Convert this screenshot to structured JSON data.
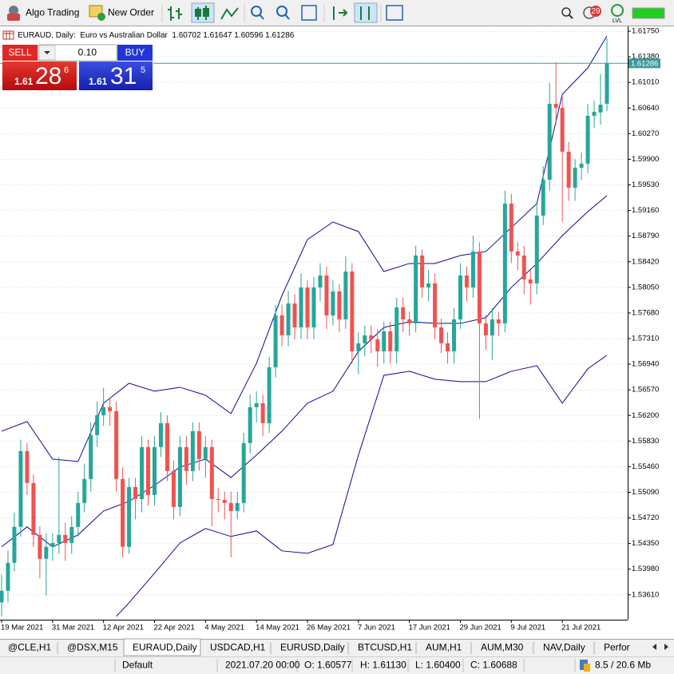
{
  "toolbar": {
    "algo_trading": "Algo Trading",
    "new_order": "New Order",
    "alerts": "29",
    "level": "LVL"
  },
  "trade_panel": {
    "sell": "SELL",
    "volume": "0.10",
    "buy": "BUY",
    "bid": {
      "big_figure": "1.61",
      "pips": "28",
      "point": "6"
    },
    "ask": {
      "big_figure": "1.61",
      "pips": "31",
      "point": "5"
    }
  },
  "tabs": [
    "@CLE,H1",
    "@DSX,M15",
    "EURAUD,Daily",
    "USDCAD,H1",
    "EURUSD,Daily",
    "BTCUSD,H1",
    "AUM,H1",
    "AUM,M30",
    "NAV,Daily",
    "Perfor"
  ],
  "active_tab": 2,
  "status": {
    "profile": "Default",
    "time": "2021.07.20 00:00",
    "open": "O: 1.60577",
    "high": "H: 1.61130",
    "low": "L: 1.60400",
    "close": "C: 1.60688",
    "memory": "8.5 / 20.6 Mb"
  },
  "chart_data": {
    "type": "candlestick",
    "title": "EURAUD, Daily:  Euro vs Australian Dollar  1.60702 1.61647 1.60596 1.61286",
    "up_color": "#26a69a",
    "down_color": "#ef5350",
    "categories": [
      "19 Mar 2021",
      null,
      null,
      null,
      null,
      null,
      null,
      null,
      "31 Mar 2021",
      null,
      null,
      null,
      null,
      null,
      null,
      null,
      "12 Apr 2021",
      null,
      null,
      null,
      null,
      null,
      null,
      null,
      "22 Apr 2021",
      null,
      null,
      null,
      null,
      null,
      null,
      null,
      "4 May 2021",
      null,
      null,
      null,
      null,
      null,
      null,
      null,
      "14 May 2021",
      null,
      null,
      null,
      null,
      null,
      null,
      null,
      "26 May 2021",
      null,
      null,
      null,
      null,
      null,
      null,
      null,
      "7 Jun 2021",
      null,
      null,
      null,
      null,
      null,
      null,
      null,
      "17 Jun 2021",
      null,
      null,
      null,
      null,
      null,
      null,
      null,
      "29 Jun 2021",
      null,
      null,
      null,
      null,
      null,
      null,
      null,
      "9 Jul 2021",
      null,
      null,
      null,
      null,
      null,
      null,
      null,
      "21 Jul 2021",
      null,
      null,
      null,
      null,
      null,
      null,
      null
    ],
    "open": [
      1.535,
      1.53667,
      1.54071,
      1.5459,
      1.55685,
      1.55224,
      1.54475,
      1.54129,
      1.54302,
      1.54359,
      1.54475,
      1.54359,
      1.5459,
      1.54936,
      1.55282,
      1.55916,
      1.56204,
      1.56319,
      1.56262,
      1.55282,
      1.54302,
      1.55166,
      1.54993,
      1.55743,
      1.55051,
      1.55743,
      1.56089,
      1.55397,
      1.54878,
      1.55743,
      1.55397,
      1.55973,
      1.5557,
      1.55743,
      1.54993,
      1.5498,
      1.54936,
      1.5482,
      1.54936,
      1.55801,
      1.56319,
      1.56377,
      1.56089,
      1.56896,
      1.57645,
      1.57357,
      1.57818,
      1.57472,
      1.58049,
      1.57472,
      1.58049,
      1.58222,
      1.57645,
      1.57991,
      1.57588,
      1.58279,
      1.57126,
      1.57242,
      1.57357,
      1.57299,
      1.57126,
      1.57415,
      1.57126,
      1.57761,
      1.57588,
      1.5753,
      1.5851,
      1.58049,
      1.58107,
      1.57472,
      1.57242,
      1.57126,
      1.57588,
      1.58222,
      1.58049,
      1.58568,
      1.5753,
      1.57357,
      1.57588,
      1.5753,
      1.5926,
      1.58568,
      1.5851,
      1.58164,
      1.58107,
      1.59087,
      1.59605,
      1.60701,
      1.60643,
      1.60009,
      1.5949,
      1.59778,
      1.59836,
      1.60528,
      1.60577,
      1.60702
    ],
    "high": [
      1.539,
      1.5425,
      1.548,
      1.5585,
      1.558,
      1.5535,
      1.546,
      1.545,
      1.545,
      1.556,
      1.5465,
      1.5475,
      1.551,
      1.555,
      1.561,
      1.564,
      1.566,
      1.5645,
      1.564,
      1.5545,
      1.553,
      1.553,
      1.559,
      1.5585,
      1.559,
      1.5625,
      1.562,
      1.5555,
      1.559,
      1.559,
      1.561,
      1.561,
      1.559,
      1.5585,
      1.5515,
      1.551,
      1.551,
      1.551,
      1.5595,
      1.565,
      1.5655,
      1.565,
      1.5705,
      1.578,
      1.578,
      1.58,
      1.5795,
      1.5825,
      1.5815,
      1.582,
      1.584,
      1.5835,
      1.5815,
      1.581,
      1.585,
      1.584,
      1.574,
      1.575,
      1.575,
      1.5745,
      1.5755,
      1.5755,
      1.579,
      1.579,
      1.577,
      1.5865,
      1.586,
      1.583,
      1.5825,
      1.576,
      1.574,
      1.5775,
      1.584,
      1.5835,
      1.588,
      1.587,
      1.5765,
      1.5775,
      1.577,
      1.5945,
      1.594,
      1.587,
      1.5865,
      1.583,
      1.5925,
      1.598,
      1.61,
      1.613,
      1.608,
      1.6015,
      1.599,
      1.6,
      1.607,
      1.6075,
      1.6113,
      1.61647
    ],
    "low": [
      1.533,
      1.535,
      1.5395,
      1.5445,
      1.5505,
      1.543,
      1.5385,
      1.536,
      1.541,
      1.542,
      1.541,
      1.542,
      1.5445,
      1.548,
      1.551,
      1.5575,
      1.5605,
      1.5605,
      1.551,
      1.5415,
      1.542,
      1.547,
      1.548,
      1.549,
      1.549,
      1.556,
      1.5525,
      1.547,
      1.5475,
      1.552,
      1.5525,
      1.554,
      1.553,
      1.546,
      1.548,
      1.547,
      1.5415,
      1.547,
      1.548,
      1.5565,
      1.561,
      1.559,
      1.5595,
      1.5675,
      1.572,
      1.572,
      1.573,
      1.573,
      1.573,
      1.573,
      1.5785,
      1.5745,
      1.575,
      1.574,
      1.5745,
      1.5695,
      1.568,
      1.5705,
      1.571,
      1.569,
      1.5695,
      1.5695,
      1.5695,
      1.574,
      1.5735,
      1.574,
      1.579,
      1.5785,
      1.573,
      1.571,
      1.5695,
      1.5695,
      1.5745,
      1.5785,
      1.579,
      1.5615,
      1.5715,
      1.57,
      1.5735,
      1.574,
      1.584,
      1.583,
      1.5795,
      1.578,
      1.5795,
      1.5895,
      1.5945,
      1.604,
      1.59,
      1.593,
      1.593,
      1.596,
      1.597,
      1.6035,
      1.604,
      1.60596
    ],
    "close": [
      1.53667,
      1.54071,
      1.5459,
      1.55685,
      1.55224,
      1.54475,
      1.54129,
      1.54302,
      1.54359,
      1.54475,
      1.54359,
      1.5459,
      1.54936,
      1.55282,
      1.55916,
      1.56204,
      1.56319,
      1.56262,
      1.55282,
      1.54302,
      1.55166,
      1.54993,
      1.55743,
      1.55051,
      1.55743,
      1.56089,
      1.55397,
      1.54878,
      1.55743,
      1.55397,
      1.55973,
      1.5557,
      1.55743,
      1.54993,
      1.5498,
      1.54936,
      1.5482,
      1.54936,
      1.55801,
      1.56319,
      1.56377,
      1.56089,
      1.56896,
      1.57645,
      1.57357,
      1.57818,
      1.57472,
      1.58049,
      1.57472,
      1.58049,
      1.58222,
      1.57645,
      1.57991,
      1.57588,
      1.58279,
      1.57126,
      1.57242,
      1.57357,
      1.57299,
      1.57126,
      1.57415,
      1.57126,
      1.57761,
      1.57588,
      1.5753,
      1.5851,
      1.58049,
      1.58107,
      1.57472,
      1.57242,
      1.57126,
      1.57588,
      1.58222,
      1.58049,
      1.58568,
      1.5753,
      1.57357,
      1.57588,
      1.5753,
      1.5926,
      1.58568,
      1.5851,
      1.58164,
      1.58107,
      1.59087,
      1.59605,
      1.60701,
      1.60643,
      1.60009,
      1.5949,
      1.59778,
      1.59836,
      1.60528,
      1.60585,
      1.60688,
      1.61286
    ],
    "bands": {
      "color": "#0a0a96",
      "lines": [
        {
          "x": [
            0,
            4,
            8,
            12,
            16,
            20,
            24,
            28,
            32,
            36,
            40,
            44,
            48,
            52,
            56,
            60,
            64,
            68,
            72,
            76,
            80,
            84,
            88,
            92,
            95
          ],
          "values": [
            1.55973,
            1.56112,
            1.5557,
            1.55535,
            1.56377,
            1.56665,
            1.5655,
            1.56607,
            1.56492,
            1.56227,
            1.56953,
            1.57933,
            1.58741,
            1.58994,
            1.58856,
            1.58279,
            1.58395,
            1.58395,
            1.5851,
            1.58568,
            1.58914,
            1.5926,
            1.60839,
            1.6122,
            1.61681
          ]
        },
        {
          "x": [
            0,
            4,
            8,
            12,
            16,
            20,
            24,
            28,
            32,
            36,
            40,
            44,
            48,
            52,
            56,
            60,
            64,
            68,
            72,
            76,
            80,
            84,
            88,
            92,
            95
          ],
          "values": [
            1.54302,
            1.5459,
            1.54302,
            1.54475,
            1.5482,
            1.54959,
            1.55189,
            1.55455,
            1.5557,
            1.55305,
            1.55627,
            1.55973,
            1.56377,
            1.5655,
            1.57126,
            1.57472,
            1.57553,
            1.5753,
            1.5753,
            1.57611,
            1.58049,
            1.58395,
            1.58798,
            1.59144,
            1.59375
          ]
        },
        {
          "x": [
            18,
            20,
            24,
            28,
            32,
            36,
            40,
            44,
            48,
            52,
            56,
            60,
            64,
            68,
            72,
            76,
            80,
            84,
            88,
            92,
            95
          ],
          "values": [
            1.53298,
            1.53494,
            1.53921,
            1.54359,
            1.54567,
            1.54452,
            1.54532,
            1.54244,
            1.54209,
            1.54336,
            1.55627,
            1.5678,
            1.56838,
            1.56723,
            1.56688,
            1.56688,
            1.56838,
            1.56919,
            1.56377,
            1.56873,
            1.57069
          ]
        }
      ]
    },
    "current_price": 1.61286,
    "price_line_color": "#3a9a9a",
    "ylim": [
      1.5325,
      1.6182
    ],
    "yticks": [
      {
        "value": 1.6175,
        "label": "1.61750"
      },
      {
        "value": 1.6138,
        "label": "1.61380"
      },
      {
        "value": 1.6101,
        "label": "1.61010"
      },
      {
        "value": 1.6064,
        "label": "1.60640"
      },
      {
        "value": 1.6027,
        "label": "1.60270"
      },
      {
        "value": 1.599,
        "label": "1.59900"
      },
      {
        "value": 1.5953,
        "label": "1.59530"
      },
      {
        "value": 1.5916,
        "label": "1.59160"
      },
      {
        "value": 1.5879,
        "label": "1.58790"
      },
      {
        "value": 1.5842,
        "label": "1.58420"
      },
      {
        "value": 1.5805,
        "label": "1.58050"
      },
      {
        "value": 1.5768,
        "label": "1.57680"
      },
      {
        "value": 1.5731,
        "label": "1.57310"
      },
      {
        "value": 1.5694,
        "label": "1.56940"
      },
      {
        "value": 1.5657,
        "label": "1.56570"
      },
      {
        "value": 1.562,
        "label": "1.56200"
      },
      {
        "value": 1.5583,
        "label": "1.55830"
      },
      {
        "value": 1.5546,
        "label": "1.55460"
      },
      {
        "value": 1.5509,
        "label": "1.55090"
      },
      {
        "value": 1.5472,
        "label": "1.54720"
      },
      {
        "value": 1.5435,
        "label": "1.54350"
      },
      {
        "value": 1.5398,
        "label": "1.53980"
      },
      {
        "value": 1.5361,
        "label": "1.53610"
      }
    ],
    "grid": true
  }
}
